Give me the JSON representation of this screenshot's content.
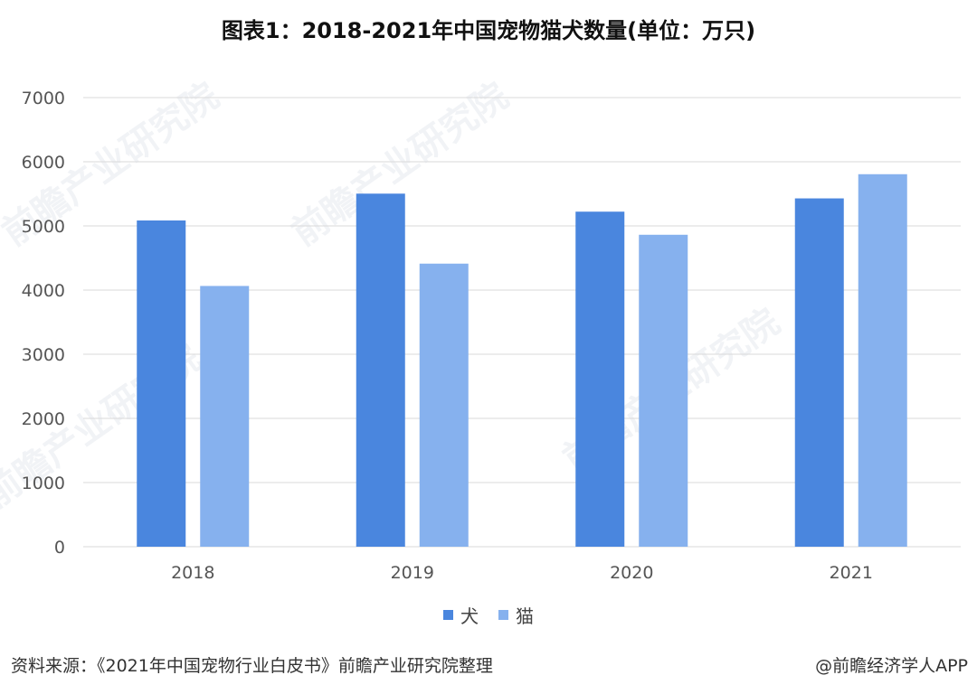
{
  "title": "图表1：2018-2021年中国宠物猫犬数量(单位：万只)",
  "source": "资料来源：《2021年中国宠物行业白皮书》前瞻产业研究院整理",
  "brand": "@前瞻经济学人APP",
  "watermark": "前瞻产业研究院",
  "colors": {
    "dog": "#4a86de",
    "cat": "#86b1ee"
  },
  "chart_data": {
    "type": "bar",
    "title": "图表1：2018-2021年中国宠物猫犬数量(单位：万只)",
    "xlabel": "",
    "ylabel": "",
    "categories": [
      "2018",
      "2019",
      "2020",
      "2021"
    ],
    "series": [
      {
        "name": "犬",
        "values": [
          5085,
          5503,
          5222,
          5429
        ]
      },
      {
        "name": "猫",
        "values": [
          4064,
          4412,
          4862,
          5806
        ]
      }
    ],
    "ylim": [
      0,
      7000
    ],
    "yticks": [
      "0",
      "1000",
      "2000",
      "3000",
      "4000",
      "5000",
      "6000",
      "7000"
    ],
    "grid": true,
    "legend": "bottom-center"
  }
}
